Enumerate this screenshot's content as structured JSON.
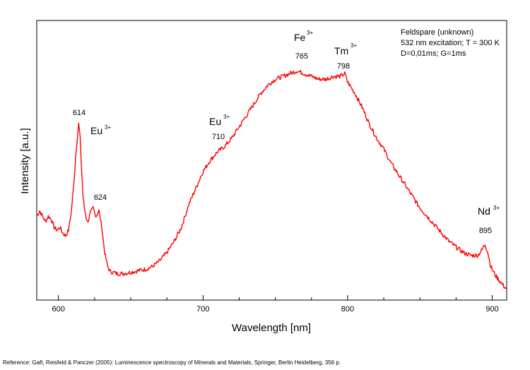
{
  "chart_data": {
    "type": "line",
    "xlabel": "Wavelength [nm]",
    "ylabel": "Intensity [a.u.]",
    "xlim": [
      585,
      910
    ],
    "ylim": [
      0,
      100
    ],
    "x_ticks": [
      600,
      700,
      800,
      900
    ],
    "y_ticks_labeled": false,
    "grid": false,
    "series": [
      {
        "color": "#ff0000",
        "points": [
          [
            585,
            30
          ],
          [
            587,
            32
          ],
          [
            589,
            30
          ],
          [
            591,
            28
          ],
          [
            593,
            30
          ],
          [
            595,
            29
          ],
          [
            597,
            26
          ],
          [
            599,
            25
          ],
          [
            601,
            26
          ],
          [
            603,
            24
          ],
          [
            605,
            23
          ],
          [
            607,
            25
          ],
          [
            609,
            32
          ],
          [
            611,
            44
          ],
          [
            612,
            52
          ],
          [
            613,
            58
          ],
          [
            614,
            63
          ],
          [
            615,
            58
          ],
          [
            616,
            47
          ],
          [
            617,
            37
          ],
          [
            618,
            33
          ],
          [
            619,
            30
          ],
          [
            620,
            28
          ],
          [
            621,
            29
          ],
          [
            622,
            31
          ],
          [
            624,
            33
          ],
          [
            626,
            30
          ],
          [
            628,
            32
          ],
          [
            630,
            26
          ],
          [
            632,
            17
          ],
          [
            634,
            12
          ],
          [
            636,
            10
          ],
          [
            638,
            10
          ],
          [
            640,
            9.5
          ],
          [
            645,
            9.5
          ],
          [
            650,
            10
          ],
          [
            655,
            10.5
          ],
          [
            660,
            11
          ],
          [
            665,
            12
          ],
          [
            670,
            14
          ],
          [
            675,
            17
          ],
          [
            680,
            21
          ],
          [
            685,
            26
          ],
          [
            690,
            34
          ],
          [
            695,
            40
          ],
          [
            700,
            46
          ],
          [
            705,
            50
          ],
          [
            710,
            53
          ],
          [
            715,
            55
          ],
          [
            720,
            58
          ],
          [
            725,
            62
          ],
          [
            730,
            66
          ],
          [
            735,
            70
          ],
          [
            740,
            74
          ],
          [
            745,
            77
          ],
          [
            750,
            79
          ],
          [
            755,
            80
          ],
          [
            760,
            81
          ],
          [
            765,
            82
          ],
          [
            770,
            81
          ],
          [
            775,
            80
          ],
          [
            780,
            79
          ],
          [
            785,
            79
          ],
          [
            790,
            80
          ],
          [
            795,
            80
          ],
          [
            798,
            81
          ],
          [
            800,
            78
          ],
          [
            805,
            74
          ],
          [
            810,
            69
          ],
          [
            815,
            63
          ],
          [
            820,
            58
          ],
          [
            825,
            54
          ],
          [
            830,
            49
          ],
          [
            835,
            45
          ],
          [
            840,
            41
          ],
          [
            845,
            37
          ],
          [
            850,
            33
          ],
          [
            855,
            30
          ],
          [
            860,
            27
          ],
          [
            865,
            24
          ],
          [
            870,
            21
          ],
          [
            875,
            19
          ],
          [
            880,
            17
          ],
          [
            885,
            16
          ],
          [
            890,
            16
          ],
          [
            893,
            18
          ],
          [
            895,
            20
          ],
          [
            897,
            17
          ],
          [
            899,
            12
          ],
          [
            902,
            9
          ],
          [
            905,
            7
          ],
          [
            908,
            5
          ],
          [
            910,
            4
          ]
        ]
      }
    ],
    "peak_labels": [
      {
        "x": 614,
        "y": 63,
        "text": "614"
      },
      {
        "x": 624,
        "y": 33,
        "text": "624"
      },
      {
        "x": 710,
        "y": 53,
        "text": "710"
      },
      {
        "x": 765,
        "y": 82,
        "text": "765"
      },
      {
        "x": 798,
        "y": 81,
        "text": "798"
      },
      {
        "x": 895,
        "y": 20,
        "text": "895"
      }
    ],
    "ion_labels": [
      {
        "ion": "Eu",
        "charge": "3+",
        "near": 614
      },
      {
        "ion": "Eu",
        "charge": "3+",
        "near": 710
      },
      {
        "ion": "Fe",
        "charge": "3+",
        "near": 765
      },
      {
        "ion": "Tm",
        "charge": "3+",
        "near": 798
      },
      {
        "ion": "Nd",
        "charge": "3+",
        "near": 895
      }
    ],
    "info_box": [
      "Feldspare (unknown)",
      "532 nm excitation; T = 300 K",
      "D=0,01ms; G=1ms"
    ]
  },
  "reference": "Reference: Gaft, Reisfeld & Panczer (2005): Luminescence spectroscopy of Minerals and Materials, Springer, Berlin Heidelberg, 356 p."
}
